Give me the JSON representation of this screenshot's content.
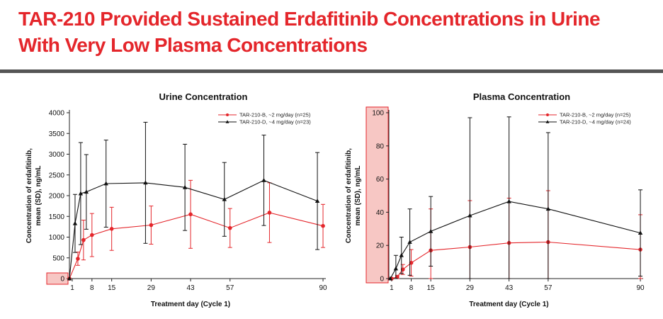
{
  "slide": {
    "title_line1": "TAR-210 Provided Sustained Erdafitinib Concentrations in Urine",
    "title_line2": "With Very Low Plasma Concentrations",
    "accent_color": "#e4262b"
  },
  "chart_data": [
    {
      "type": "line",
      "title": "Urine Concentration",
      "xlabel": "Treatment day (Cycle 1)",
      "ylabel": [
        "Concentration of erdafitinib,",
        "mean (SD), ng/mL"
      ],
      "xlim": [
        0,
        91
      ],
      "ylim": [
        0,
        4000
      ],
      "xticks": [
        1,
        8,
        15,
        29,
        43,
        57,
        90
      ],
      "yticks": [
        0,
        500,
        1000,
        1500,
        2000,
        2500,
        3000,
        3500,
        4000
      ],
      "legend_position": "top-right",
      "series": [
        {
          "name": "TAR-210-B, ~2 mg/day (n=25)",
          "color": "#e4262b",
          "marker": "circle",
          "x": [
            0,
            3,
            5,
            8,
            15,
            29,
            43,
            57,
            71,
            90
          ],
          "y": [
            0,
            480,
            930,
            1050,
            1200,
            1290,
            1550,
            1220,
            1590,
            1270
          ],
          "sd": [
            0,
            160,
            480,
            520,
            520,
            460,
            820,
            470,
            720,
            520
          ]
        },
        {
          "name": "TAR-210-D, ~4 mg/day (n=23)",
          "color": "#111111",
          "marker": "triangle",
          "x": [
            0,
            2,
            4,
            6,
            13,
            27,
            41,
            55,
            69,
            88
          ],
          "y": [
            0,
            1330,
            2050,
            2090,
            2290,
            2310,
            2200,
            1910,
            2370,
            1870
          ],
          "sd": [
            0,
            700,
            1230,
            900,
            1050,
            1460,
            1040,
            890,
            1090,
            1170
          ]
        }
      ]
    },
    {
      "type": "line",
      "title": "Plasma Concentration",
      "xlabel": "Treatment day (Cycle 1)",
      "ylabel": [
        "Concentration of erdafitinib,",
        "mean (SD), ng/mL"
      ],
      "xlim": [
        0,
        91
      ],
      "ylim": [
        0,
        100
      ],
      "xticks": [
        1,
        8,
        15,
        29,
        43,
        57,
        90
      ],
      "yticks": [
        0,
        20,
        40,
        60,
        80,
        100
      ],
      "legend_position": "top-right",
      "series": [
        {
          "name": "TAR-210-B, ~2 mg/day (n=25)",
          "color": "#e4262b",
          "marker": "circle",
          "x": [
            1,
            3,
            5,
            8,
            15,
            29,
            43,
            57,
            90
          ],
          "y": [
            0,
            1,
            5.5,
            9.5,
            17,
            19,
            21.5,
            22,
            17.5
          ],
          "sd": [
            0,
            1,
            3,
            8,
            25,
            28,
            27,
            31,
            21
          ]
        },
        {
          "name": "TAR-210-D, ~4 mg/day (n=24)",
          "color": "#111111",
          "marker": "triangle",
          "x": [
            0.5,
            2.5,
            4.5,
            7.5,
            15,
            29,
            43,
            57,
            90
          ],
          "y": [
            0,
            6,
            14,
            22,
            28.5,
            38,
            46.5,
            42,
            27.5
          ],
          "sd": [
            0,
            8,
            11,
            20,
            21,
            59,
            51,
            46,
            26
          ]
        }
      ]
    }
  ]
}
